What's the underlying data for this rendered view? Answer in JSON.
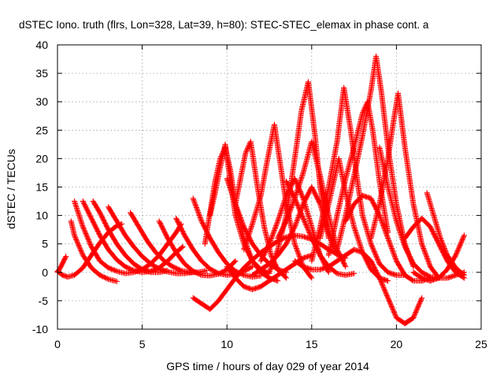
{
  "chart_data": {
    "type": "scatter",
    "title": "dSTEC Iono. truth (flrs, Lon=328, Lat=39, h=80): STEC-STEC_elemax in phase cont. a",
    "xlabel": "GPS time / hours of day 029 of year 2014",
    "ylabel": "dSTEC  / TECUs",
    "xlim": [
      0,
      25
    ],
    "ylim": [
      -10,
      40
    ],
    "xticks": [
      "0",
      "5",
      "10",
      "15",
      "20",
      "25"
    ],
    "yticks": [
      "-10",
      "-5",
      "0",
      "5",
      "10",
      "15",
      "20",
      "25",
      "30",
      "35",
      "40"
    ],
    "grid": true,
    "marker": "+",
    "color": "#ff0000",
    "series": [
      {
        "x": [
          0.0,
          0.2,
          0.5
        ],
        "y": [
          0.0,
          1.0,
          2.8
        ]
      },
      {
        "x": [
          0.0,
          0.3,
          0.6,
          1.0,
          1.5,
          2.0,
          2.5,
          3.0,
          3.5,
          3.8
        ],
        "y": [
          0.2,
          -0.5,
          -0.8,
          -0.5,
          0.8,
          3.0,
          5.2,
          7.0,
          8.2,
          8.5
        ]
      },
      {
        "x": [
          0.8,
          1.0,
          1.5,
          2.0,
          2.5,
          3.0,
          3.5
        ],
        "y": [
          9.0,
          6.5,
          3.0,
          0.8,
          -0.5,
          -1.2,
          -1.6
        ]
      },
      {
        "x": [
          1.0,
          1.5,
          2.0,
          2.5,
          3.0,
          3.5,
          4.0,
          4.5,
          5.0,
          5.5,
          6.0,
          6.5,
          7.0,
          7.3
        ],
        "y": [
          12.5,
          8.0,
          4.5,
          2.0,
          0.8,
          0.2,
          -0.2,
          0.0,
          0.5,
          1.5,
          3.0,
          5.0,
          7.0,
          8.5
        ]
      },
      {
        "x": [
          1.5,
          2.0,
          2.5,
          3.0,
          3.5,
          4.0,
          4.5,
          5.0,
          5.5,
          6.0,
          6.5,
          7.0,
          7.4
        ],
        "y": [
          12.5,
          9.5,
          6.5,
          4.0,
          2.2,
          1.0,
          0.3,
          0.0,
          0.2,
          0.8,
          2.0,
          3.5,
          4.5
        ]
      },
      {
        "x": [
          2.1,
          2.5,
          3.0,
          3.5,
          4.0,
          4.5,
          5.0,
          5.5,
          6.0,
          6.5
        ],
        "y": [
          12.5,
          10.5,
          7.5,
          5.0,
          3.0,
          1.5,
          0.5,
          0.0,
          0.0,
          0.3
        ]
      },
      {
        "x": [
          3.0,
          3.5,
          4.0,
          4.5,
          5.0,
          5.5,
          6.0,
          6.5,
          7.0,
          7.5,
          8.0
        ],
        "y": [
          11.5,
          9.0,
          6.5,
          4.5,
          2.8,
          1.5,
          0.6,
          0.1,
          -0.2,
          -0.2,
          0.0
        ]
      },
      {
        "x": [
          4.3,
          4.8,
          5.3,
          5.8,
          6.3,
          6.8,
          7.3,
          7.8,
          8.3,
          8.8
        ],
        "y": [
          10.5,
          8.0,
          5.5,
          3.5,
          2.0,
          1.0,
          0.3,
          0.0,
          0.0,
          0.3
        ]
      },
      {
        "x": [
          6.0,
          6.5,
          7.0,
          7.5,
          8.0,
          8.5,
          9.0,
          9.5,
          10.0,
          10.5
        ],
        "y": [
          9.0,
          6.0,
          3.5,
          1.5,
          0.2,
          -0.5,
          -0.6,
          -0.3,
          0.5,
          2.0
        ]
      },
      {
        "x": [
          7.0,
          7.5,
          8.0,
          8.5,
          9.0,
          9.5,
          10.0,
          10.5,
          11.0,
          11.5
        ],
        "y": [
          9.5,
          6.5,
          4.0,
          2.0,
          0.6,
          -0.2,
          -0.5,
          -0.3,
          0.2,
          1.0
        ]
      },
      {
        "x": [
          8.0,
          8.5,
          9.0,
          9.5,
          10.0,
          10.5,
          11.0,
          11.5,
          12.0
        ],
        "y": [
          13.0,
          9.0,
          6.0,
          3.5,
          1.5,
          0.2,
          -0.5,
          -0.8,
          -0.6
        ]
      },
      {
        "x": [
          8.7,
          9.0,
          9.3,
          9.6,
          9.9,
          10.2,
          10.5,
          11.0,
          11.5,
          12.0,
          12.5,
          13.0
        ],
        "y": [
          5.0,
          10.5,
          16.0,
          20.0,
          22.0,
          18.0,
          12.0,
          6.0,
          2.0,
          0.0,
          -1.0,
          -1.5
        ]
      },
      {
        "x": [
          9.0,
          9.3,
          9.6,
          9.9,
          10.2,
          10.5,
          11.0,
          11.5,
          12.0,
          12.5
        ],
        "y": [
          10.0,
          14.0,
          18.5,
          22.5,
          16.0,
          10.0,
          5.0,
          2.0,
          0.5,
          -0.2
        ]
      },
      {
        "x": [
          8.0,
          8.5,
          9.0,
          9.5,
          10.0,
          10.5,
          11.0,
          11.5,
          12.0,
          12.5,
          13.0,
          13.5,
          14.0,
          14.5,
          15.0,
          15.5,
          16.0,
          16.5,
          17.0
        ],
        "y": [
          -4.5,
          -5.5,
          -6.5,
          -5.0,
          -3.0,
          -1.0,
          0.8,
          2.2,
          3.5,
          4.5,
          5.5,
          6.2,
          6.5,
          6.3,
          5.8,
          5.0,
          4.0,
          3.2,
          2.5
        ]
      },
      {
        "x": [
          10.0,
          10.5,
          11.0,
          11.5,
          12.0,
          12.5,
          13.0,
          13.5
        ],
        "y": [
          16.5,
          12.0,
          8.0,
          5.0,
          3.0,
          1.5,
          0.5,
          0.0
        ]
      },
      {
        "x": [
          10.5,
          10.8,
          11.1,
          11.4,
          11.8,
          12.2,
          12.6,
          13.0,
          13.5
        ],
        "y": [
          12.0,
          16.5,
          21.0,
          23.0,
          15.0,
          8.0,
          3.0,
          0.5,
          -1.0
        ]
      },
      {
        "x": [
          10.0,
          10.5,
          11.0,
          11.5,
          12.0,
          12.5,
          13.0,
          13.5,
          14.0,
          14.5,
          15.0
        ],
        "y": [
          1.0,
          -1.0,
          -2.5,
          -3.0,
          -2.5,
          -1.5,
          -0.5,
          0.5,
          1.5,
          2.5,
          3.0
        ]
      },
      {
        "x": [
          11.0,
          11.5,
          12.0,
          12.4,
          12.8,
          13.2,
          13.5,
          14.0,
          14.5,
          15.0
        ],
        "y": [
          4.0,
          8.5,
          13.5,
          20.0,
          26.0,
          18.0,
          12.0,
          5.0,
          1.0,
          -1.0
        ]
      },
      {
        "x": [
          12.0,
          12.5,
          13.0,
          13.5,
          14.0,
          14.5,
          15.0,
          15.5,
          16.0
        ],
        "y": [
          2.0,
          5.0,
          9.0,
          13.5,
          16.5,
          13.0,
          8.0,
          3.0,
          0.0
        ]
      },
      {
        "x": [
          11.5,
          12.0,
          12.5,
          13.0,
          13.5,
          14.0,
          14.5,
          15.0,
          15.5,
          16.0,
          16.5
        ],
        "y": [
          -0.5,
          0.5,
          1.5,
          3.0,
          5.0,
          8.0,
          12.0,
          15.0,
          12.0,
          7.0,
          3.0
        ]
      },
      {
        "x": [
          12.5,
          13.0,
          13.5,
          14.0,
          14.4,
          14.8,
          15.2,
          15.5,
          16.0
        ],
        "y": [
          0.0,
          4.0,
          10.0,
          20.0,
          28.5,
          33.5,
          24.0,
          15.0,
          6.0
        ]
      },
      {
        "x": [
          13.0,
          13.5,
          14.0,
          14.5,
          15.0,
          15.5,
          16.0,
          16.5,
          17.0
        ],
        "y": [
          6.0,
          9.0,
          13.0,
          17.5,
          23.0,
          17.0,
          10.0,
          4.0,
          1.0
        ]
      },
      {
        "x": [
          13.5,
          14.0,
          14.5,
          15.0,
          15.5,
          16.0,
          16.5,
          17.0,
          17.5
        ],
        "y": [
          16.0,
          13.0,
          9.5,
          6.0,
          3.0,
          1.0,
          -0.2,
          -0.5,
          -0.2
        ]
      },
      {
        "x": [
          14.0,
          14.5,
          15.0,
          15.5,
          16.0,
          16.5,
          17.0,
          17.5,
          18.0,
          18.5,
          19.0,
          19.5,
          20.0,
          20.5,
          21.0
        ],
        "y": [
          2.0,
          1.0,
          0.5,
          0.5,
          1.0,
          2.0,
          3.0,
          4.0,
          3.5,
          2.0,
          -1.0,
          -4.5,
          -8.0,
          -9.0,
          -8.0
        ]
      },
      {
        "x": [
          20.5,
          21.0,
          21.5
        ],
        "y": [
          -9.0,
          -8.0,
          -4.5
        ]
      },
      {
        "x": [
          15.0,
          15.5,
          16.0,
          16.5,
          16.9,
          17.3,
          17.7,
          18.0,
          18.5,
          19.0,
          19.5,
          20.0,
          20.5
        ],
        "y": [
          2.0,
          8.0,
          15.0,
          23.0,
          32.5,
          25.0,
          16.0,
          10.0,
          5.0,
          1.5,
          0.0,
          -0.5,
          -0.5
        ]
      },
      {
        "x": [
          15.5,
          16.0,
          16.3,
          16.6,
          17.0,
          17.5,
          18.0,
          18.5,
          19.0,
          19.5
        ],
        "y": [
          6.0,
          12.0,
          16.0,
          20.0,
          14.0,
          8.0,
          3.5,
          0.5,
          -1.0,
          -1.5
        ]
      },
      {
        "x": [
          16.0,
          16.5,
          17.0,
          17.5,
          18.0,
          18.3,
          18.6,
          19.0,
          19.5
        ],
        "y": [
          3.0,
          10.0,
          16.5,
          22.0,
          28.0,
          30.0,
          25.0,
          16.0,
          7.0
        ]
      },
      {
        "x": [
          16.5,
          17.0,
          17.5,
          18.0,
          18.5,
          18.8,
          19.1,
          19.5,
          20.0,
          20.5,
          21.0
        ],
        "y": [
          4.0,
          10.0,
          17.0,
          24.0,
          32.0,
          38.0,
          32.0,
          22.0,
          12.0,
          5.0,
          1.0
        ]
      },
      {
        "x": [
          17.0,
          17.5,
          18.0,
          18.5,
          19.0,
          19.5,
          20.0,
          20.5,
          21.0,
          21.5,
          22.0
        ],
        "y": [
          9.0,
          12.0,
          13.5,
          13.0,
          10.0,
          6.0,
          2.0,
          -0.5,
          -1.5,
          -1.5,
          -1.0
        ]
      },
      {
        "x": [
          18.5,
          19.0,
          19.5,
          19.8,
          20.1,
          20.5,
          21.0,
          21.5,
          22.0,
          22.5
        ],
        "y": [
          6.0,
          12.0,
          20.0,
          26.0,
          31.5,
          22.0,
          12.0,
          5.0,
          1.0,
          -1.0
        ]
      },
      {
        "x": [
          19.0,
          19.5,
          20.0,
          20.5,
          21.0,
          21.5,
          22.0,
          22.5,
          23.0,
          23.5,
          24.0
        ],
        "y": [
          22.0,
          15.0,
          9.0,
          4.5,
          1.5,
          0.0,
          -0.8,
          -1.0,
          -1.0,
          -0.5,
          0.0
        ]
      },
      {
        "x": [
          20.5,
          21.0,
          21.5,
          22.0,
          22.5,
          23.0,
          23.5,
          24.0
        ],
        "y": [
          6.0,
          8.0,
          9.5,
          8.0,
          5.0,
          2.0,
          0.0,
          -1.0
        ]
      },
      {
        "x": [
          21.8,
          22.2,
          22.6,
          23.0,
          23.5,
          24.0
        ],
        "y": [
          14.0,
          10.0,
          6.0,
          3.0,
          0.8,
          -0.5
        ]
      },
      {
        "x": [
          21.0,
          21.5,
          22.0,
          22.5,
          23.0,
          23.5,
          24.0
        ],
        "y": [
          0.0,
          -1.0,
          -1.5,
          -1.0,
          0.5,
          3.0,
          6.5
        ]
      }
    ]
  }
}
